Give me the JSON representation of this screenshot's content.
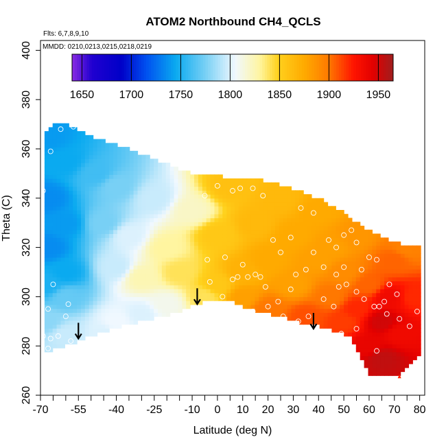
{
  "chart_data": {
    "type": "heatmap",
    "title": "ATOM2 Northbound CH4_QCLS",
    "subtitle_flights": "Flts: 6,7,8,9,10",
    "subtitle_dates": "MMDD: 0210,0213,0215,0218,0219",
    "xlabel": "Latitude (deg N)",
    "ylabel": "Theta (C)",
    "xlim": [
      -70,
      82
    ],
    "ylim": [
      260,
      404
    ],
    "x_ticks": [
      -70,
      -55,
      -40,
      -25,
      -10,
      0,
      10,
      20,
      30,
      40,
      50,
      60,
      70,
      80
    ],
    "x_tick_labels": [
      "-70",
      "-55",
      "-40",
      "-25",
      "-10",
      "0",
      "10",
      "20",
      "30",
      "40",
      "50",
      "60",
      "70",
      "80"
    ],
    "x_minor_step": 5,
    "y_ticks": [
      260,
      280,
      300,
      320,
      340,
      360,
      380,
      400
    ],
    "y_tick_labels": [
      "260",
      "280",
      "300",
      "320",
      "340",
      "360",
      "380",
      "400"
    ],
    "colorbar": {
      "range": [
        1640,
        1965
      ],
      "ticks": [
        1650,
        1700,
        1750,
        1800,
        1850,
        1900,
        1950
      ],
      "tick_labels": [
        "1650",
        "1700",
        "1750",
        "1800",
        "1850",
        "1900",
        "1950"
      ],
      "color_stops": [
        {
          "value": 1640,
          "color": "#8a2be2"
        },
        {
          "value": 1660,
          "color": "#2000d0"
        },
        {
          "value": 1690,
          "color": "#0000c8"
        },
        {
          "value": 1715,
          "color": "#0050f0"
        },
        {
          "value": 1745,
          "color": "#0aaaf0"
        },
        {
          "value": 1775,
          "color": "#78d0f5"
        },
        {
          "value": 1805,
          "color": "#f0f8ff"
        },
        {
          "value": 1830,
          "color": "#fff5a0"
        },
        {
          "value": 1848,
          "color": "#ffd21e"
        },
        {
          "value": 1875,
          "color": "#ffaa00"
        },
        {
          "value": 1900,
          "color": "#ff7800"
        },
        {
          "value": 1925,
          "color": "#ff1400"
        },
        {
          "value": 1945,
          "color": "#e10000"
        },
        {
          "value": 1965,
          "color": "#a01e1e"
        }
      ]
    },
    "tropopause_arrows": [
      {
        "lat": -55,
        "theta": 283
      },
      {
        "lat": -8,
        "theta": 297
      },
      {
        "lat": 38,
        "theta": 287
      }
    ],
    "field_anchors": [
      {
        "lat": -67,
        "theta": 365,
        "value": 1740
      },
      {
        "lat": -60,
        "theta": 355,
        "value": 1745
      },
      {
        "lat": -67,
        "theta": 340,
        "value": 1735
      },
      {
        "lat": -60,
        "theta": 330,
        "value": 1740
      },
      {
        "lat": -67,
        "theta": 320,
        "value": 1735
      },
      {
        "lat": -60,
        "theta": 310,
        "value": 1745
      },
      {
        "lat": -67,
        "theta": 305,
        "value": 1750
      },
      {
        "lat": -60,
        "theta": 300,
        "value": 1770
      },
      {
        "lat": -67,
        "theta": 290,
        "value": 1780
      },
      {
        "lat": -60,
        "theta": 285,
        "value": 1795
      },
      {
        "lat": -45,
        "theta": 285,
        "value": 1800
      },
      {
        "lat": -40,
        "theta": 290,
        "value": 1805
      },
      {
        "lat": -30,
        "theta": 293,
        "value": 1800
      },
      {
        "lat": -20,
        "theta": 297,
        "value": 1810
      },
      {
        "lat": -48,
        "theta": 350,
        "value": 1760
      },
      {
        "lat": -45,
        "theta": 330,
        "value": 1775
      },
      {
        "lat": -40,
        "theta": 312,
        "value": 1795
      },
      {
        "lat": -40,
        "theta": 345,
        "value": 1775
      },
      {
        "lat": -35,
        "theta": 325,
        "value": 1800
      },
      {
        "lat": -25,
        "theta": 340,
        "value": 1795
      },
      {
        "lat": -30,
        "theta": 308,
        "value": 1825
      },
      {
        "lat": -20,
        "theta": 320,
        "value": 1830
      },
      {
        "lat": -15,
        "theta": 310,
        "value": 1840
      },
      {
        "lat": -10,
        "theta": 335,
        "value": 1820
      },
      {
        "lat": -5,
        "theta": 300,
        "value": 1840
      },
      {
        "lat": 0,
        "theta": 305,
        "value": 1855
      },
      {
        "lat": 0,
        "theta": 325,
        "value": 1855
      },
      {
        "lat": 5,
        "theta": 345,
        "value": 1860
      },
      {
        "lat": 10,
        "theta": 310,
        "value": 1870
      },
      {
        "lat": 10,
        "theta": 300,
        "value": 1880
      },
      {
        "lat": 15,
        "theta": 330,
        "value": 1865
      },
      {
        "lat": 20,
        "theta": 295,
        "value": 1900
      },
      {
        "lat": 20,
        "theta": 315,
        "value": 1875
      },
      {
        "lat": 25,
        "theta": 340,
        "value": 1865
      },
      {
        "lat": 30,
        "theta": 305,
        "value": 1880
      },
      {
        "lat": 30,
        "theta": 325,
        "value": 1875
      },
      {
        "lat": 35,
        "theta": 292,
        "value": 1910
      },
      {
        "lat": 40,
        "theta": 315,
        "value": 1880
      },
      {
        "lat": 40,
        "theta": 335,
        "value": 1875
      },
      {
        "lat": 45,
        "theta": 300,
        "value": 1900
      },
      {
        "lat": 45,
        "theta": 320,
        "value": 1880
      },
      {
        "lat": 50,
        "theta": 290,
        "value": 1915
      },
      {
        "lat": 50,
        "theta": 310,
        "value": 1890
      },
      {
        "lat": 55,
        "theta": 325,
        "value": 1885
      },
      {
        "lat": 55,
        "theta": 295,
        "value": 1920
      },
      {
        "lat": 60,
        "theta": 305,
        "value": 1905
      },
      {
        "lat": 60,
        "theta": 280,
        "value": 1940
      },
      {
        "lat": 65,
        "theta": 290,
        "value": 1950
      },
      {
        "lat": 65,
        "theta": 275,
        "value": 1955
      },
      {
        "lat": 68,
        "theta": 300,
        "value": 1935
      },
      {
        "lat": 70,
        "theta": 315,
        "value": 1905
      },
      {
        "lat": 72,
        "theta": 285,
        "value": 1935
      },
      {
        "lat": 75,
        "theta": 320,
        "value": 1895
      },
      {
        "lat": 78,
        "theta": 300,
        "value": 1920
      }
    ],
    "domain_upper": [
      [
        -68,
        366
      ],
      [
        -65,
        370
      ],
      [
        -60,
        370
      ],
      [
        -55,
        368
      ],
      [
        -50,
        365
      ],
      [
        -40,
        362
      ],
      [
        -25,
        356
      ],
      [
        -10,
        350
      ],
      [
        0,
        349
      ],
      [
        10,
        348
      ],
      [
        20,
        347
      ],
      [
        30,
        344
      ],
      [
        40,
        340
      ],
      [
        50,
        334
      ],
      [
        60,
        327
      ],
      [
        70,
        322
      ],
      [
        80,
        320
      ],
      [
        81,
        318
      ]
    ],
    "domain_lower": [
      [
        81,
        278
      ],
      [
        78,
        274
      ],
      [
        72,
        268
      ],
      [
        67,
        268
      ],
      [
        60,
        268
      ],
      [
        53,
        283
      ],
      [
        47,
        286
      ],
      [
        40,
        288
      ],
      [
        34,
        289
      ],
      [
        25,
        292
      ],
      [
        15,
        294
      ],
      [
        8,
        297
      ],
      [
        2,
        299
      ],
      [
        -3,
        299
      ],
      [
        -15,
        294
      ],
      [
        -30,
        290
      ],
      [
        -45,
        286
      ],
      [
        -55,
        282
      ],
      [
        -62,
        279
      ],
      [
        -68,
        278
      ]
    ],
    "observations": [
      [
        -62,
        368
      ],
      [
        -57,
        369
      ],
      [
        -66,
        359
      ],
      [
        -69,
        343
      ],
      [
        -65,
        305
      ],
      [
        -59,
        297
      ],
      [
        -60,
        292
      ],
      [
        -66,
        283
      ],
      [
        -63,
        284
      ],
      [
        -69,
        284
      ],
      [
        -58,
        282
      ],
      [
        -67,
        279
      ],
      [
        -67,
        295
      ],
      [
        -5,
        341
      ],
      [
        0,
        345
      ],
      [
        6,
        343
      ],
      [
        9,
        344
      ],
      [
        14,
        344
      ],
      [
        18,
        341
      ],
      [
        22,
        323
      ],
      [
        25,
        318
      ],
      [
        29,
        324
      ],
      [
        33,
        336
      ],
      [
        38,
        334
      ],
      [
        38,
        318
      ],
      [
        44,
        323
      ],
      [
        47,
        320
      ],
      [
        50,
        325
      ],
      [
        53,
        327
      ],
      [
        55,
        322
      ],
      [
        60,
        316
      ],
      [
        63,
        315
      ],
      [
        57,
        311
      ],
      [
        50,
        312
      ],
      [
        47,
        309
      ],
      [
        42,
        312
      ],
      [
        35,
        311
      ],
      [
        31,
        309
      ],
      [
        -4,
        315
      ],
      [
        3,
        316
      ],
      [
        8,
        308
      ],
      [
        10,
        313
      ],
      [
        12,
        308
      ],
      [
        15,
        309
      ],
      [
        6,
        307
      ],
      [
        -3,
        306
      ],
      [
        2,
        300
      ],
      [
        10,
        293
      ],
      [
        14,
        294
      ],
      [
        20,
        296
      ],
      [
        24,
        298
      ],
      [
        26,
        292
      ],
      [
        32,
        290
      ],
      [
        36,
        292
      ],
      [
        42,
        299
      ],
      [
        46,
        296
      ],
      [
        48,
        304
      ],
      [
        51,
        305
      ],
      [
        55,
        302
      ],
      [
        58,
        299
      ],
      [
        62,
        296
      ],
      [
        66,
        298
      ],
      [
        68,
        305
      ],
      [
        71,
        301
      ],
      [
        64,
        296
      ],
      [
        67,
        293
      ],
      [
        72,
        291
      ],
      [
        76,
        288
      ],
      [
        79,
        294
      ],
      [
        63,
        278
      ],
      [
        55,
        287
      ],
      [
        49,
        285
      ],
      [
        44,
        282
      ],
      [
        29,
        303
      ],
      [
        19,
        304
      ],
      [
        17,
        308
      ]
    ],
    "red_marker": {
      "lat": 72,
      "theta": 268
    }
  }
}
